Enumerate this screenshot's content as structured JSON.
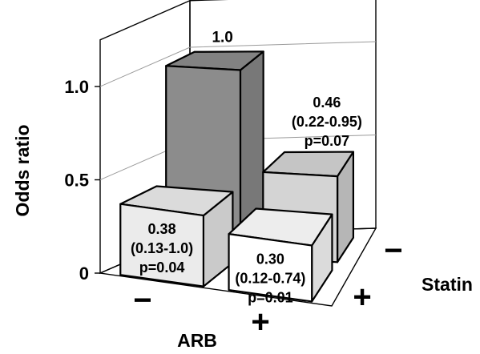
{
  "chart_data": {
    "type": "bar",
    "ylabel": "Odds ratio",
    "ylim": [
      0,
      1.25
    ],
    "yticks": [
      {
        "value": 0,
        "label": "0"
      },
      {
        "value": 0.5,
        "label": "0.5"
      },
      {
        "value": 1.0,
        "label": "1.0"
      }
    ],
    "x_axis": {
      "title": "ARB",
      "categories": [
        "−",
        "+"
      ]
    },
    "z_axis": {
      "title": "Statin",
      "categories": [
        "−",
        "+"
      ]
    },
    "bars": [
      {
        "arb": "−",
        "statin": "−",
        "value": 1.0,
        "lines": [
          "1.0"
        ],
        "color": "#8c8c8c"
      },
      {
        "arb": "+",
        "statin": "−",
        "value": 0.46,
        "lines": [
          "0.46",
          "(0.22-0.95)",
          "p=0.07"
        ],
        "color": "#d4d4d4"
      },
      {
        "arb": "−",
        "statin": "+",
        "value": 0.38,
        "lines": [
          "0.38",
          "(0.13-1.0)",
          "p=0.04"
        ],
        "color": "#ebebeb"
      },
      {
        "arb": "+",
        "statin": "+",
        "value": 0.3,
        "lines": [
          "0.30",
          "(0.12-0.74)",
          "p=0.01"
        ],
        "color": "#ffffff"
      }
    ],
    "grid": true
  }
}
